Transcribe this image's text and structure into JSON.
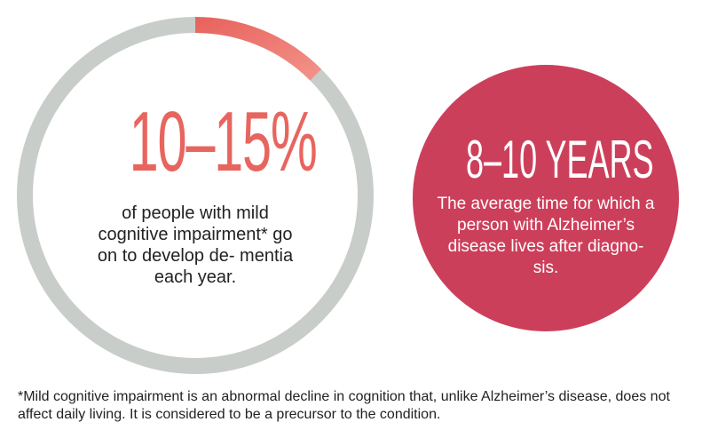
{
  "colors": {
    "ring_track": "#c9cdc9",
    "ring_highlight_start": "#e8655f",
    "ring_highlight_end": "#f29188",
    "stat_text": "#e8655f",
    "red_circle": "#cc3f5a"
  },
  "chart_data": {
    "type": "pie",
    "values": [
      12.5,
      87.5
    ],
    "stat_label": "10–15%",
    "caption": "of people with mild cognitive impairment* go on to develop de- mentia each year."
  },
  "years_panel": {
    "headline": "8–10 YEARS",
    "caption": "The average time for which a person with Alzheimer’s disease lives after diagno- sis."
  },
  "footnote": "*Mild cognitive impairment is an abnormal decline in cognition that, unlike Alzheimer’s disease, does not affect daily living. It is considered to be a precursor to the condition."
}
